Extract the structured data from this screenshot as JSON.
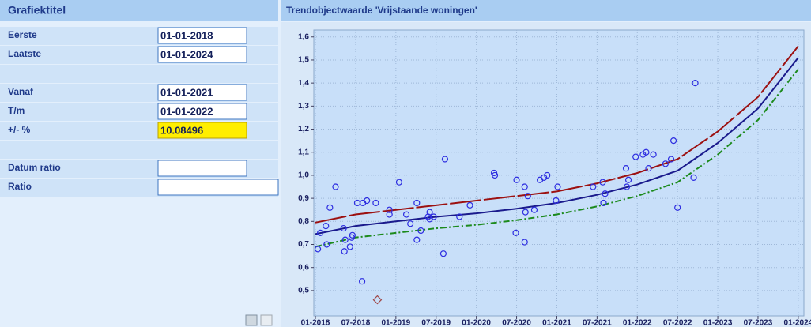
{
  "form": {
    "title": "Grafiektitel",
    "rows": [
      {
        "label": "Eerste",
        "value": "01-01-2018"
      },
      {
        "label": "Laatste",
        "value": "01-01-2024"
      },
      {
        "label": "Vanaf",
        "value": "01-01-2021"
      },
      {
        "label": "T/m",
        "value": "01-01-2022"
      },
      {
        "label": "+/- %",
        "value": "10.08496"
      },
      {
        "label": "Datum ratio"
      },
      {
        "label": "Ratio"
      }
    ]
  },
  "chart_data": {
    "type": "line",
    "title": "Trendobjectwaarde 'Vrijstaande woningen'",
    "x": [
      2018,
      2018.5,
      2019,
      2019.5,
      2020,
      2020.5,
      2021,
      2021.5,
      2022,
      2022.5,
      2023,
      2023.5,
      2024
    ],
    "series": [
      {
        "color": "#9c1010",
        "dash": "dashed",
        "values": [
          0.795,
          0.83,
          0.85,
          0.87,
          0.89,
          0.91,
          0.93,
          0.965,
          1.01,
          1.07,
          1.19,
          1.34,
          1.56
        ]
      },
      {
        "color": "#1a1a8c",
        "dash": "solid",
        "values": [
          0.745,
          0.78,
          0.8,
          0.82,
          0.835,
          0.855,
          0.88,
          0.915,
          0.96,
          1.02,
          1.14,
          1.29,
          1.51
        ]
      },
      {
        "color": "#1c8a1c",
        "dash": "dashdot",
        "values": [
          0.69,
          0.73,
          0.75,
          0.77,
          0.785,
          0.805,
          0.83,
          0.865,
          0.91,
          0.97,
          1.09,
          1.24,
          1.46
        ]
      },
      {
        "type": "scatter",
        "marker": "circle",
        "color": "#2d2de0",
        "x": [
          2018.03,
          2018.06,
          2018.13,
          2018.14,
          2018.18,
          2018.25,
          2018.35,
          2018.36,
          2018.37,
          2018.43,
          2018.45,
          2018.46,
          2018.52,
          2018.58,
          2018.59,
          2018.64,
          2018.75,
          2018.92,
          2018.92,
          2019.04,
          2019.13,
          2019.18,
          2019.26,
          2019.26,
          2019.31,
          2019.4,
          2019.42,
          2019.42,
          2019.47,
          2019.59,
          2019.61,
          2019.79,
          2019.92,
          2020.22,
          2020.23,
          2020.49,
          2020.5,
          2020.6,
          2020.6,
          2020.61,
          2020.64,
          2020.72,
          2020.79,
          2020.84,
          2020.88,
          2020.99,
          2021.01,
          2021.45,
          2021.57,
          2021.58,
          2021.6,
          2021.87,
          2021.89,
          2021.86,
          2021.98,
          2022.07,
          2022.11,
          2022.14,
          2022.2,
          2022.35,
          2022.42,
          2022.45,
          2022.5,
          2022.7,
          2022.72
        ],
        "values": [
          0.68,
          0.75,
          0.78,
          0.7,
          0.86,
          0.95,
          0.77,
          0.67,
          0.72,
          0.69,
          0.73,
          0.74,
          0.88,
          0.54,
          0.88,
          0.89,
          0.88,
          0.85,
          0.83,
          0.97,
          0.83,
          0.79,
          0.88,
          0.72,
          0.76,
          0.82,
          0.84,
          0.81,
          0.82,
          0.66,
          1.07,
          0.82,
          0.87,
          1.01,
          1.0,
          0.75,
          0.98,
          0.95,
          0.71,
          0.84,
          0.91,
          0.85,
          0.98,
          0.99,
          1.0,
          0.89,
          0.95,
          0.95,
          0.97,
          0.88,
          0.92,
          0.95,
          0.98,
          1.03,
          1.08,
          1.09,
          1.1,
          1.03,
          1.09,
          1.05,
          1.07,
          1.15,
          0.86,
          0.99,
          1.4
        ]
      },
      {
        "type": "scatter",
        "marker": "diamond",
        "color": "#a04848",
        "x": [
          2018.77
        ],
        "values": [
          0.46
        ]
      }
    ],
    "xlim": [
      2017.98,
      2024.07
    ],
    "ylim": [
      0.39,
      1.63
    ],
    "xticks": [
      {
        "value": 2018,
        "label": "01-2018"
      },
      {
        "value": 2018.5,
        "label": "07-2018"
      },
      {
        "value": 2019,
        "label": "01-2019"
      },
      {
        "value": 2019.5,
        "label": "07-2019"
      },
      {
        "value": 2020,
        "label": "01-2020"
      },
      {
        "value": 2020.5,
        "label": "07-2020"
      },
      {
        "value": 2021,
        "label": "01-2021"
      },
      {
        "value": 2021.5,
        "label": "07-2021"
      },
      {
        "value": 2022,
        "label": "01-2022"
      },
      {
        "value": 2022.5,
        "label": "07-2022"
      },
      {
        "value": 2023,
        "label": "01-2023"
      },
      {
        "value": 2023.5,
        "label": "07-2023"
      },
      {
        "value": 2024,
        "label": "01-2024"
      }
    ],
    "yticks": [
      {
        "value": 0.5,
        "label": "0,5"
      },
      {
        "value": 0.6,
        "label": "0,6"
      },
      {
        "value": 0.7,
        "label": "0,7"
      },
      {
        "value": 0.8,
        "label": "0,8"
      },
      {
        "value": 0.9,
        "label": "0,9"
      },
      {
        "value": 1.0,
        "label": "1,0"
      },
      {
        "value": 1.1,
        "label": "1,1"
      },
      {
        "value": 1.2,
        "label": "1,2"
      },
      {
        "value": 1.3,
        "label": "1,3"
      },
      {
        "value": 1.4,
        "label": "1,4"
      },
      {
        "value": 1.5,
        "label": "1,5"
      },
      {
        "value": 1.6,
        "label": "1,6"
      }
    ],
    "grid": true
  }
}
